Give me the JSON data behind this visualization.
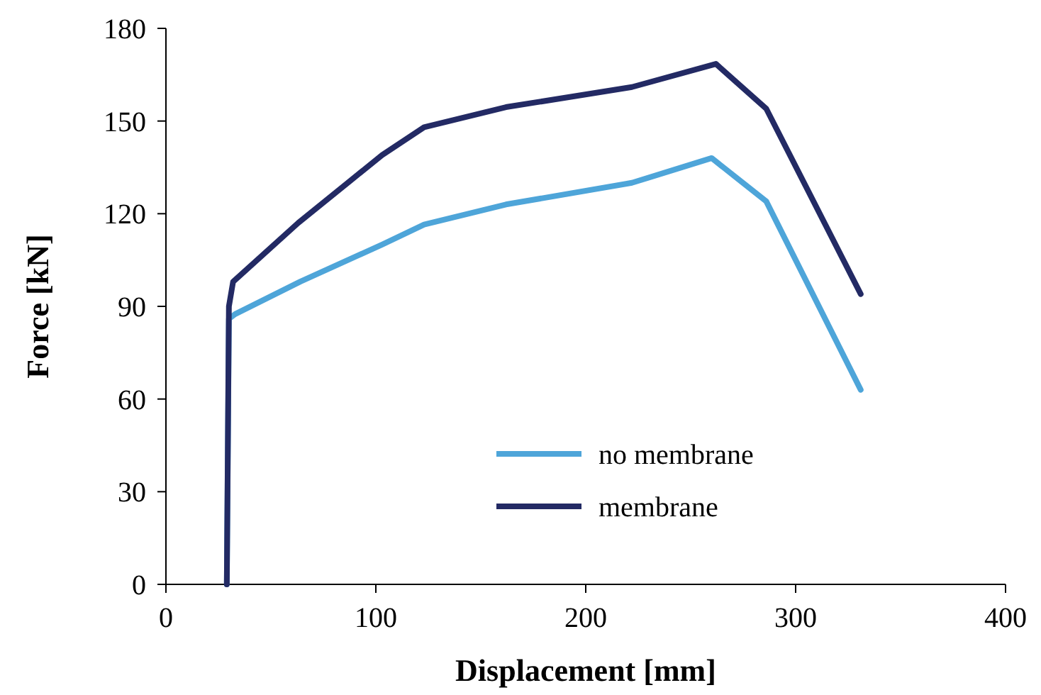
{
  "chart_data": {
    "type": "line",
    "xlabel": "Displacement [mm]",
    "ylabel": "Force [kN]",
    "xlim": [
      0,
      400
    ],
    "xticks": [
      0,
      100,
      200,
      300,
      400
    ],
    "ylim": [
      0,
      180
    ],
    "yticks": [
      0,
      30,
      60,
      90,
      120,
      150,
      180
    ],
    "grid": false,
    "legend": "bottom",
    "line_style": "solid",
    "marker": "none",
    "series": [
      {
        "name": "no membrane",
        "color": "#4ea5d9",
        "x": [
          29,
          30,
          33,
          64,
          103,
          123,
          162,
          222,
          260,
          286,
          331
        ],
        "values": [
          0,
          86,
          87.5,
          98,
          110,
          116.5,
          123,
          130,
          138,
          124,
          63
        ]
      },
      {
        "name": "membrane",
        "color": "#232a64",
        "x": [
          29,
          30,
          32,
          63,
          103,
          123,
          162,
          222,
          262,
          286,
          331
        ],
        "values": [
          0,
          90,
          98,
          117,
          139,
          148,
          154.5,
          161,
          168.5,
          154,
          94
        ]
      }
    ]
  }
}
